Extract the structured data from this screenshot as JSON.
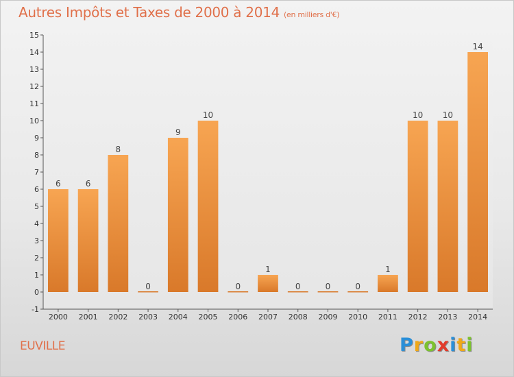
{
  "header": {
    "title": "Autres Impôts et Taxes de 2000 à 2014",
    "subtitle": "(en milliers d'€)"
  },
  "footer": {
    "town": "EUVILLE",
    "logo_letters": [
      "P",
      "r",
      "o",
      "x",
      "i",
      "t",
      "i"
    ]
  },
  "colors": {
    "title": "#e0704a",
    "bar_top": "#f7a552",
    "bar_bottom": "#d9792a"
  },
  "chart_data": {
    "type": "bar",
    "categories": [
      "2000",
      "2001",
      "2002",
      "2003",
      "2004",
      "2005",
      "2006",
      "2007",
      "2008",
      "2009",
      "2010",
      "2011",
      "2012",
      "2013",
      "2014"
    ],
    "values": [
      6,
      6,
      8,
      0,
      9,
      10,
      0,
      1,
      0,
      0,
      0,
      1,
      10,
      10,
      14
    ],
    "data_labels": [
      "6",
      "6",
      "8",
      "0",
      "9",
      "10",
      "0",
      "1",
      "0",
      "0",
      "0",
      "1",
      "10",
      "10",
      "14"
    ],
    "ylim": [
      -1,
      15
    ],
    "yticks": [
      -1,
      0,
      1,
      2,
      3,
      4,
      5,
      6,
      7,
      8,
      9,
      10,
      11,
      12,
      13,
      14,
      15
    ],
    "ytick_labels": [
      "-1",
      "0",
      "1",
      "2",
      "3",
      "4",
      "5",
      "6",
      "7",
      "8",
      "9",
      "10",
      "11",
      "12",
      "13",
      "14",
      "15"
    ],
    "grid": false,
    "legend": "none"
  }
}
